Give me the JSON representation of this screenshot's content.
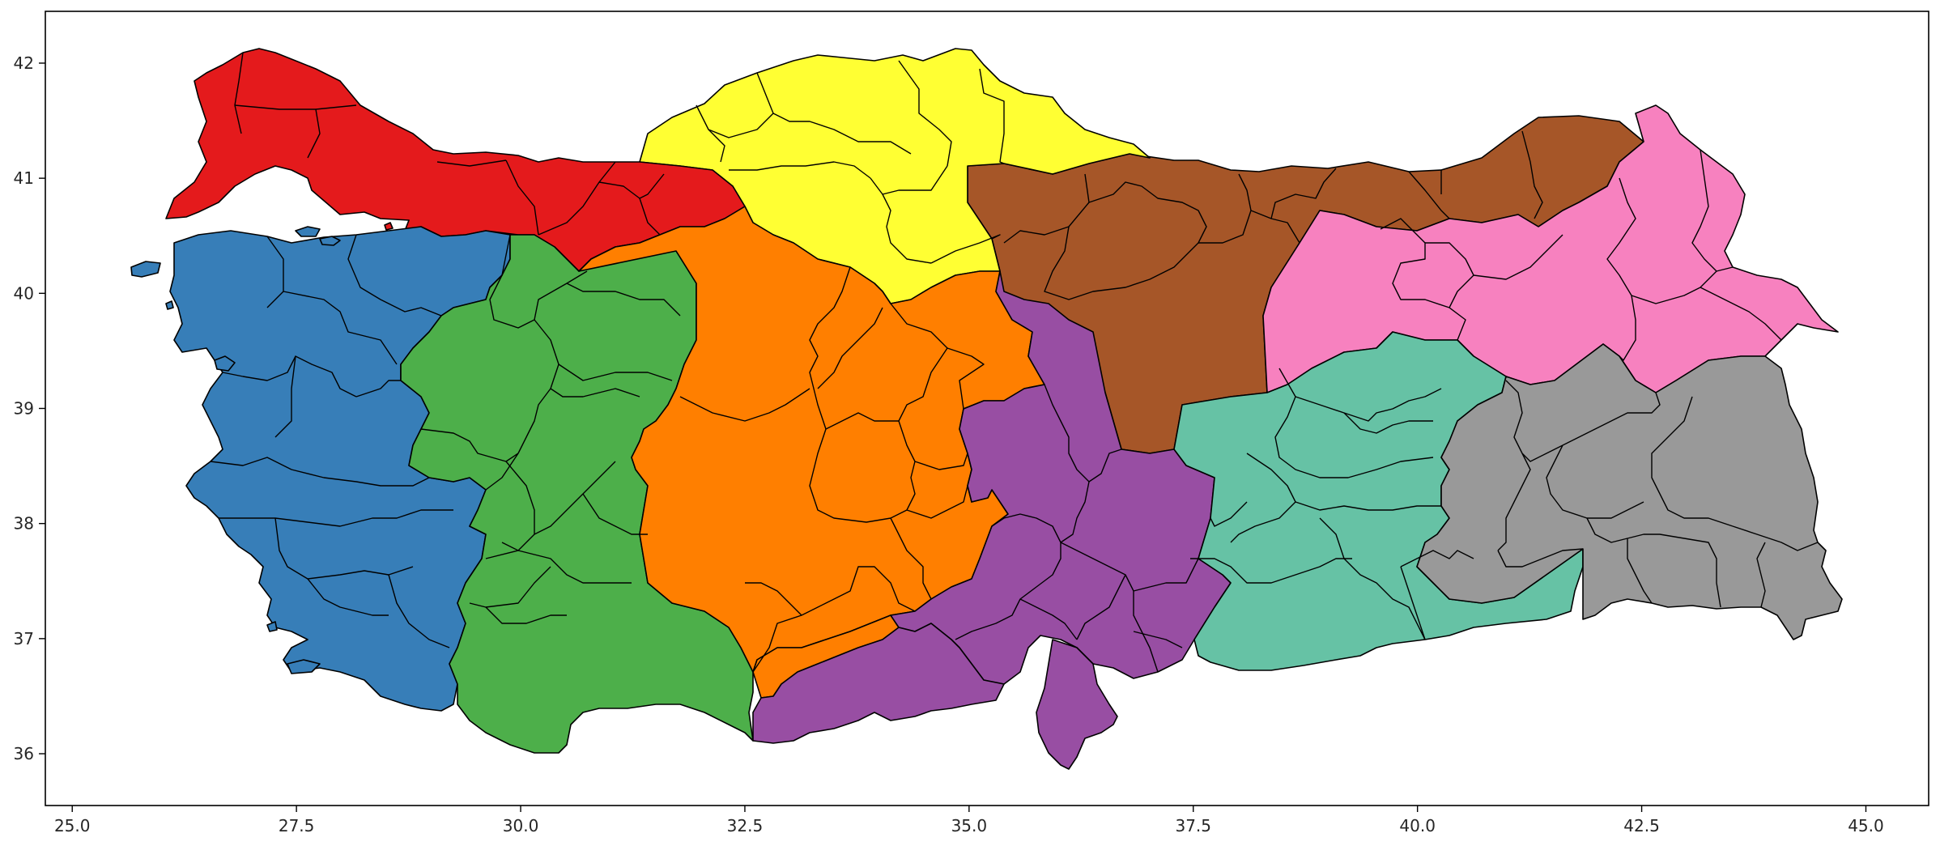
{
  "map": {
    "type": "choropleth",
    "subject": "Turkey provinces grouped into regions",
    "x_axis": {
      "ticks": [
        "25.0",
        "27.5",
        "30.0",
        "32.5",
        "35.0",
        "37.5",
        "40.0",
        "42.5",
        "45.0"
      ],
      "range": [
        24.7,
        45.7
      ]
    },
    "y_axis": {
      "ticks": [
        "36",
        "37",
        "38",
        "39",
        "40",
        "41",
        "42"
      ],
      "range": [
        35.55,
        42.45
      ]
    },
    "grid": false,
    "legend": "none",
    "regions": [
      {
        "id": "northwest",
        "color": "#e41a1c"
      },
      {
        "id": "west",
        "color": "#377eb8"
      },
      {
        "id": "west-central",
        "color": "#4daf4a"
      },
      {
        "id": "central",
        "color": "#ff7f00"
      },
      {
        "id": "north-central",
        "color": "#ffff33"
      },
      {
        "id": "north-east",
        "color": "#a65628"
      },
      {
        "id": "north-eastern",
        "color": "#f781bf"
      },
      {
        "id": "south-east",
        "color": "#66c2a5"
      },
      {
        "id": "far-east",
        "color": "#999999"
      },
      {
        "id": "south",
        "color": "#984ea3"
      }
    ]
  }
}
